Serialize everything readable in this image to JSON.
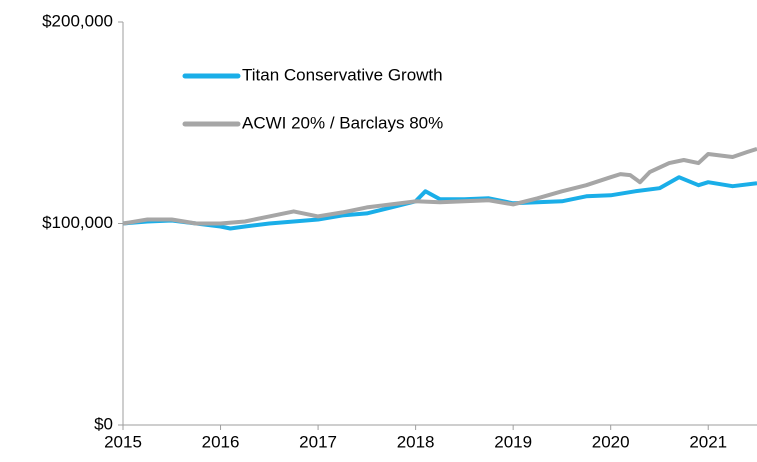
{
  "chart_data": {
    "type": "line",
    "xlim": [
      2015,
      2021.5
    ],
    "xticks": [
      2015,
      2016,
      2017,
      2018,
      2019,
      2020,
      2021
    ],
    "ylim": [
      0,
      200000
    ],
    "yticks": [
      {
        "value": 0,
        "label": "$0"
      },
      {
        "value": 100000,
        "label": "$100,000"
      },
      {
        "value": 200000,
        "label": "$200,000"
      }
    ],
    "grid": false,
    "legend": "upper left",
    "series": [
      {
        "name": "Titan Conservative Growth",
        "color": "#1aaee8",
        "x": [
          2015,
          2015.25,
          2015.5,
          2015.75,
          2016,
          2016.1,
          2016.25,
          2016.5,
          2016.75,
          2017,
          2017.25,
          2017.5,
          2017.75,
          2018,
          2018.1,
          2018.25,
          2018.5,
          2018.75,
          2019,
          2019.25,
          2019.5,
          2019.75,
          2020,
          2020.25,
          2020.5,
          2020.7,
          2020.9,
          2021,
          2021.25,
          2021.5
        ],
        "values": [
          100000,
          101000,
          101500,
          100000,
          98500,
          97500,
          98500,
          100000,
          101000,
          102000,
          104000,
          105000,
          108000,
          111000,
          116000,
          112000,
          112000,
          112500,
          110000,
          110500,
          111000,
          113500,
          114000,
          116000,
          117500,
          123000,
          119000,
          120500,
          118500,
          120000
        ]
      },
      {
        "name": "ACWI 20% / Barclays 80%",
        "color": "#a6a6a6",
        "x": [
          2015,
          2015.25,
          2015.5,
          2015.75,
          2016,
          2016.25,
          2016.5,
          2016.75,
          2017,
          2017.25,
          2017.5,
          2017.75,
          2018,
          2018.25,
          2018.5,
          2018.75,
          2019,
          2019.25,
          2019.5,
          2019.75,
          2020,
          2020.1,
          2020.2,
          2020.3,
          2020.4,
          2020.6,
          2020.75,
          2020.9,
          2021,
          2021.25,
          2021.4,
          2021.5
        ],
        "values": [
          100000,
          102000,
          102000,
          100000,
          100000,
          101000,
          103500,
          106000,
          103500,
          105500,
          108000,
          109500,
          111000,
          110500,
          111000,
          111500,
          109500,
          112500,
          116000,
          119000,
          123000,
          124500,
          124000,
          120500,
          125500,
          130000,
          131500,
          130000,
          134500,
          133000,
          135500,
          137000
        ]
      }
    ]
  }
}
